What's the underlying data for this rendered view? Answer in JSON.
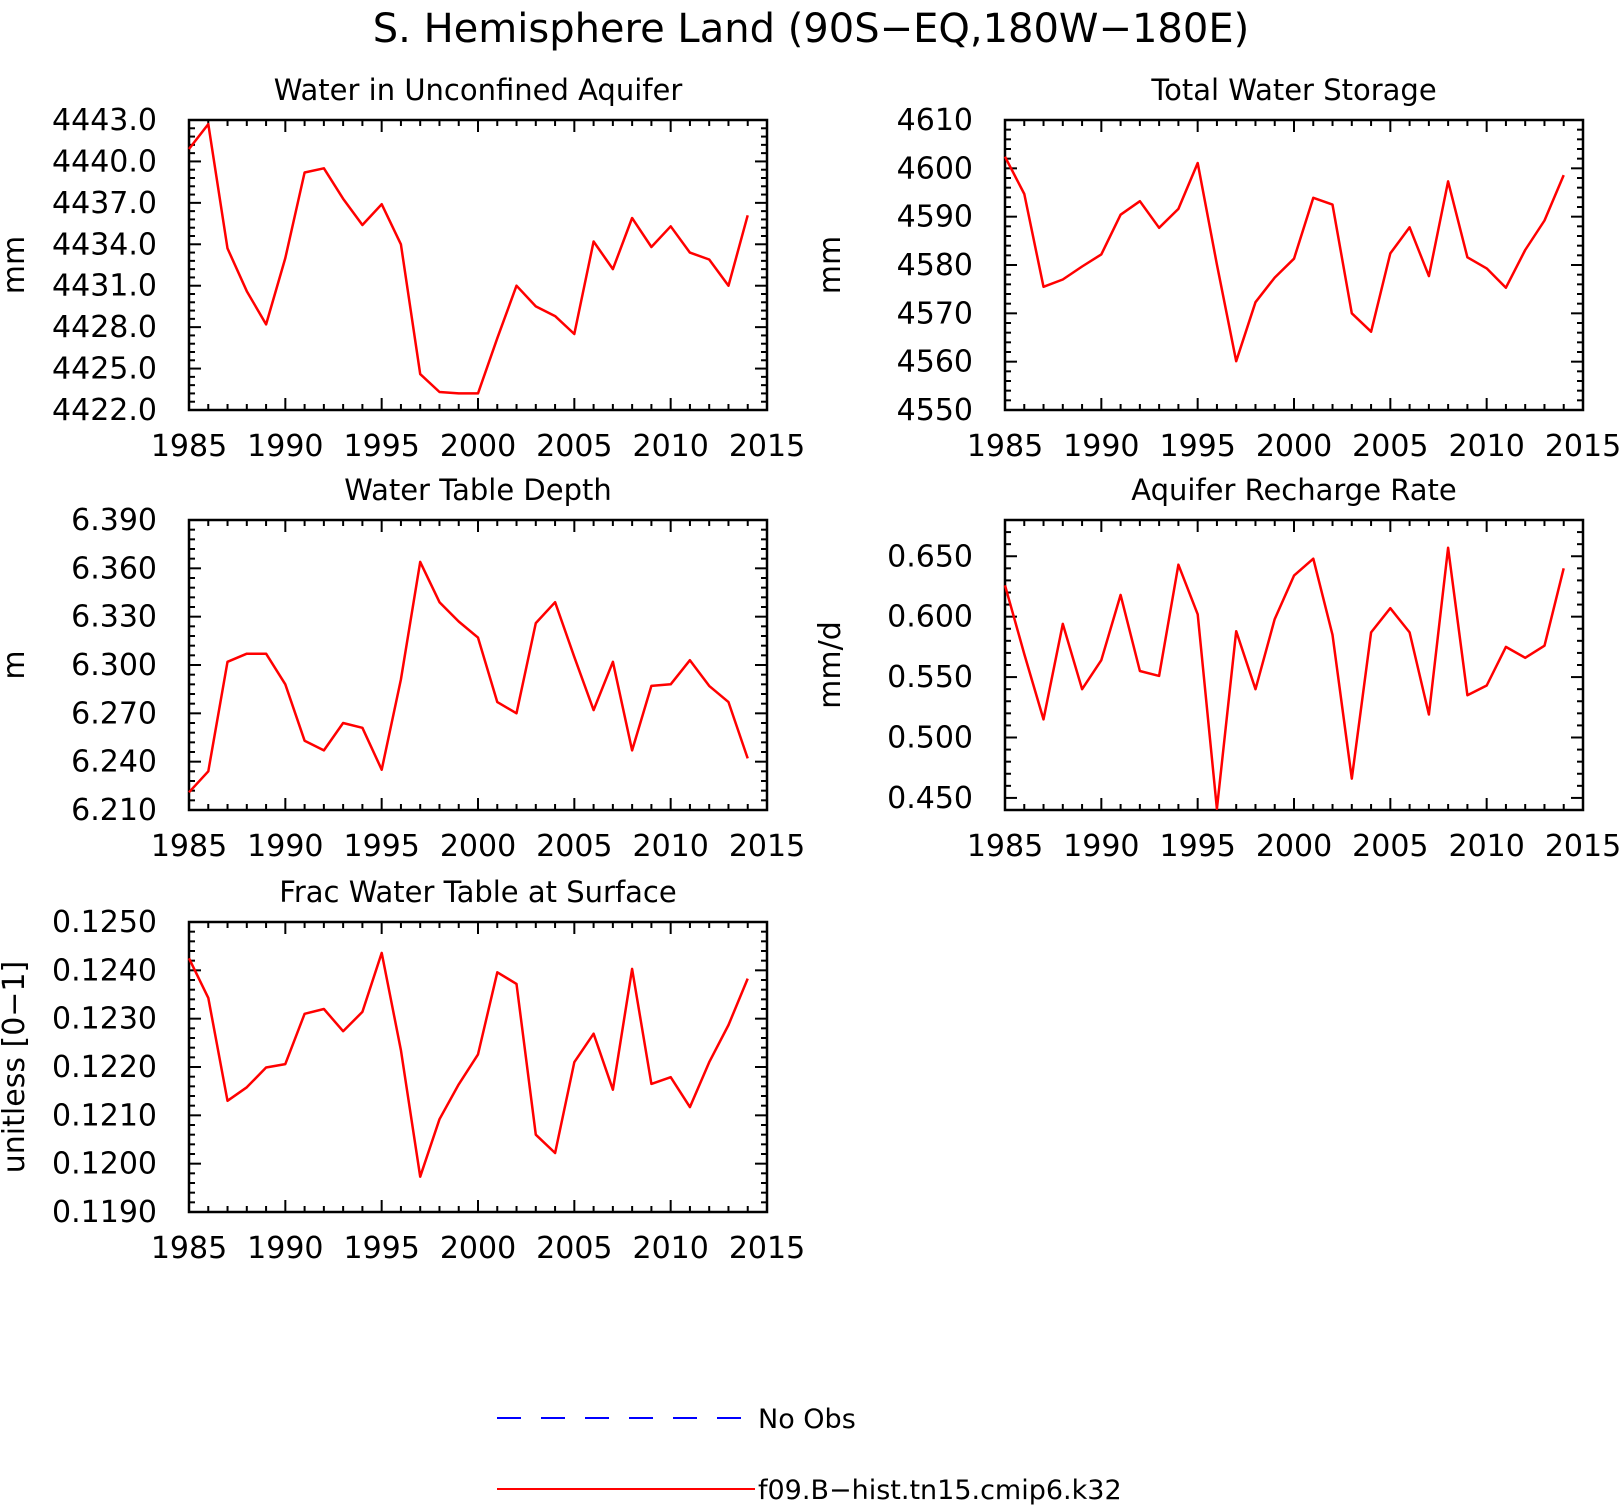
{
  "figure": {
    "title": "S. Hemisphere Land (90S−EQ,180W−180E)"
  },
  "legend": {
    "entries": [
      {
        "label": "No Obs",
        "color": "#0000ff",
        "dash": "dashed"
      },
      {
        "label": "f09.B−hist.tn15.cmip6.k32",
        "color": "#ff0000",
        "dash": "solid"
      }
    ]
  },
  "chart_data": [
    {
      "type": "line",
      "title": "Water in Unconfined Aquifer",
      "ylabel": "mm",
      "xlim": [
        1985,
        2015
      ],
      "ylim": [
        4422.0,
        4443.0
      ],
      "xticks": [
        "1985",
        "1990",
        "1995",
        "2000",
        "2005",
        "2010",
        "2015"
      ],
      "yticks": [
        "4422.0",
        "4425.0",
        "4428.0",
        "4431.0",
        "4434.0",
        "4437.0",
        "4440.0",
        "4443.0"
      ],
      "series": [
        {
          "name": "f09.B−hist.tn15.cmip6.k32",
          "color": "#ff0000",
          "x": [
            1985,
            1986,
            1987,
            1988,
            1989,
            1990,
            1991,
            1992,
            1993,
            1994,
            1995,
            1996,
            1997,
            1998,
            1999,
            2000,
            2001,
            2002,
            2003,
            2004,
            2005,
            2006,
            2007,
            2008,
            2009,
            2010,
            2011,
            2012,
            2013,
            2014
          ],
          "y": [
            4440.9,
            4442.7,
            4433.7,
            4430.6,
            4428.2,
            4433.0,
            4439.2,
            4439.5,
            4437.3,
            4435.4,
            4436.9,
            4434.0,
            4424.6,
            4423.3,
            4423.2,
            4423.2,
            4427.2,
            4431.0,
            4429.5,
            4428.8,
            4427.5,
            4434.2,
            4432.2,
            4435.9,
            4433.8,
            4435.3,
            4433.4,
            4432.9,
            4431.0,
            4436.1
          ]
        }
      ]
    },
    {
      "type": "line",
      "title": "Total Water Storage",
      "ylabel": "mm",
      "xlim": [
        1985,
        2015
      ],
      "ylim": [
        4550,
        4610
      ],
      "xticks": [
        "1985",
        "1990",
        "1995",
        "2000",
        "2005",
        "2010",
        "2015"
      ],
      "yticks": [
        "4550",
        "4560",
        "4570",
        "4580",
        "4590",
        "4600",
        "4610"
      ],
      "series": [
        {
          "name": "f09.B−hist.tn15.cmip6.k32",
          "color": "#ff0000",
          "x": [
            1985,
            1986,
            1987,
            1988,
            1989,
            1990,
            1991,
            1992,
            1993,
            1994,
            1995,
            1996,
            1997,
            1998,
            1999,
            2000,
            2001,
            2002,
            2003,
            2004,
            2005,
            2006,
            2007,
            2008,
            2009,
            2010,
            2011,
            2012,
            2013,
            2014
          ],
          "y": [
            4602.4,
            4594.7,
            4575.5,
            4577.0,
            4579.7,
            4582.2,
            4590.4,
            4593.2,
            4587.7,
            4591.6,
            4601.1,
            4580.1,
            4560.1,
            4572.3,
            4577.4,
            4581.3,
            4593.9,
            4592.5,
            4570.0,
            4566.2,
            4582.4,
            4587.8,
            4577.7,
            4597.3,
            4581.6,
            4579.3,
            4575.3,
            4583.1,
            4589.2,
            4598.6
          ]
        }
      ]
    },
    {
      "type": "line",
      "title": "Water Table Depth",
      "ylabel": "m",
      "xlim": [
        1985,
        2015
      ],
      "ylim": [
        6.21,
        6.39
      ],
      "xticks": [
        "1985",
        "1990",
        "1995",
        "2000",
        "2005",
        "2010",
        "2015"
      ],
      "yticks": [
        "6.210",
        "6.240",
        "6.270",
        "6.300",
        "6.330",
        "6.360",
        "6.390"
      ],
      "series": [
        {
          "name": "f09.B−hist.tn15.cmip6.k32",
          "color": "#ff0000",
          "x": [
            1985,
            1986,
            1987,
            1988,
            1989,
            1990,
            1991,
            1992,
            1993,
            1994,
            1995,
            1996,
            1997,
            1998,
            1999,
            2000,
            2001,
            2002,
            2003,
            2004,
            2005,
            2006,
            2007,
            2008,
            2009,
            2010,
            2011,
            2012,
            2013,
            2014
          ],
          "y": [
            6.221,
            6.234,
            6.302,
            6.307,
            6.307,
            6.288,
            6.253,
            6.247,
            6.264,
            6.261,
            6.235,
            6.291,
            6.364,
            6.339,
            6.327,
            6.317,
            6.277,
            6.27,
            6.326,
            6.339,
            6.305,
            6.272,
            6.302,
            6.247,
            6.287,
            6.288,
            6.303,
            6.287,
            6.277,
            6.242
          ]
        }
      ]
    },
    {
      "type": "line",
      "title": "Aquifer Recharge Rate",
      "ylabel": "mm/d",
      "xlim": [
        1985,
        2015
      ],
      "ylim": [
        0.44,
        0.68
      ],
      "xticks": [
        "1985",
        "1990",
        "1995",
        "2000",
        "2005",
        "2010",
        "2015"
      ],
      "yticks": [
        "0.450",
        "0.500",
        "0.550",
        "0.600",
        "0.650"
      ],
      "series": [
        {
          "name": "f09.B−hist.tn15.cmip6.k32",
          "color": "#ff0000",
          "x": [
            1985,
            1986,
            1987,
            1988,
            1989,
            1990,
            1991,
            1992,
            1993,
            1994,
            1995,
            1996,
            1997,
            1998,
            1999,
            2000,
            2001,
            2002,
            2003,
            2004,
            2005,
            2006,
            2007,
            2008,
            2009,
            2010,
            2011,
            2012,
            2013,
            2014
          ],
          "y": [
            0.626,
            0.569,
            0.515,
            0.594,
            0.54,
            0.564,
            0.618,
            0.555,
            0.551,
            0.643,
            0.602,
            0.441,
            0.588,
            0.54,
            0.598,
            0.634,
            0.648,
            0.585,
            0.466,
            0.587,
            0.607,
            0.587,
            0.519,
            0.657,
            0.535,
            0.543,
            0.575,
            0.566,
            0.576,
            0.64
          ]
        }
      ]
    },
    {
      "type": "line",
      "title": "Frac Water Table at Surface",
      "ylabel": "unitless [0−1]",
      "xlim": [
        1985,
        2015
      ],
      "ylim": [
        0.119,
        0.125
      ],
      "xticks": [
        "1985",
        "1990",
        "1995",
        "2000",
        "2005",
        "2010",
        "2015"
      ],
      "yticks": [
        "0.1190",
        "0.1200",
        "0.1210",
        "0.1220",
        "0.1230",
        "0.1240",
        "0.1250"
      ],
      "series": [
        {
          "name": "f09.B−hist.tn15.cmip6.k32",
          "color": "#ff0000",
          "x": [
            1985,
            1986,
            1987,
            1988,
            1989,
            1990,
            1991,
            1992,
            1993,
            1994,
            1995,
            1996,
            1997,
            1998,
            1999,
            2000,
            2001,
            2002,
            2003,
            2004,
            2005,
            2006,
            2007,
            2008,
            2009,
            2010,
            2011,
            2012,
            2013,
            2014
          ],
          "y": [
            0.12425,
            0.12343,
            0.1213,
            0.12158,
            0.12199,
            0.12206,
            0.1231,
            0.1232,
            0.12274,
            0.12314,
            0.12436,
            0.12235,
            0.11973,
            0.12092,
            0.12164,
            0.12226,
            0.12396,
            0.12372,
            0.1206,
            0.12022,
            0.1221,
            0.12269,
            0.12153,
            0.12403,
            0.12165,
            0.12179,
            0.12117,
            0.1221,
            0.12287,
            0.12383
          ]
        }
      ]
    }
  ]
}
